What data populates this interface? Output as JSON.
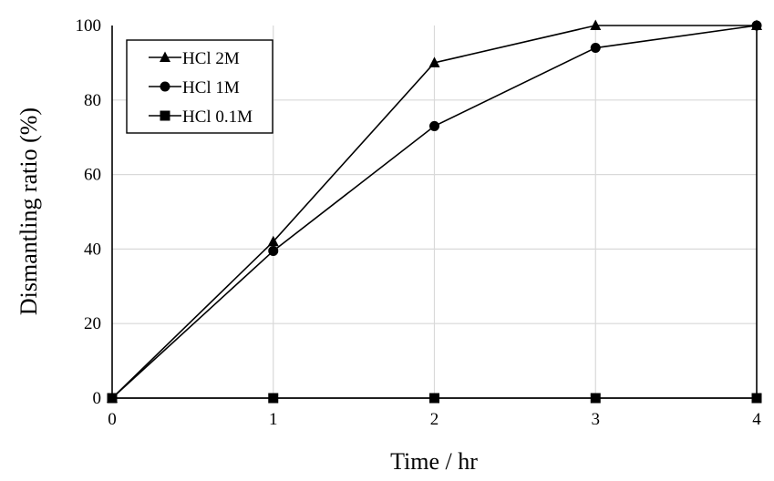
{
  "chart_data": {
    "type": "line",
    "title": "",
    "xlabel": "Time / hr",
    "ylabel": "Dismantling ratio (%)",
    "x": [
      0,
      1,
      2,
      3,
      4
    ],
    "xlim": [
      0,
      4
    ],
    "ylim": [
      0,
      100
    ],
    "x_ticks": [
      "0",
      "1",
      "2",
      "3",
      "4"
    ],
    "y_ticks": [
      "0",
      "20",
      "40",
      "60",
      "80",
      "100"
    ],
    "grid": true,
    "legend_position": "top-left",
    "series": [
      {
        "name": "HCl 2M",
        "marker": "triangle",
        "color": "#000000",
        "values": [
          0,
          42,
          90,
          100,
          100
        ]
      },
      {
        "name": "HCl 1M",
        "marker": "circle",
        "color": "#000000",
        "values": [
          0,
          39.5,
          73,
          94,
          100
        ]
      },
      {
        "name": "HCl 0.1M",
        "marker": "square",
        "color": "#000000",
        "values": [
          0,
          0,
          0,
          0,
          0
        ]
      }
    ]
  }
}
